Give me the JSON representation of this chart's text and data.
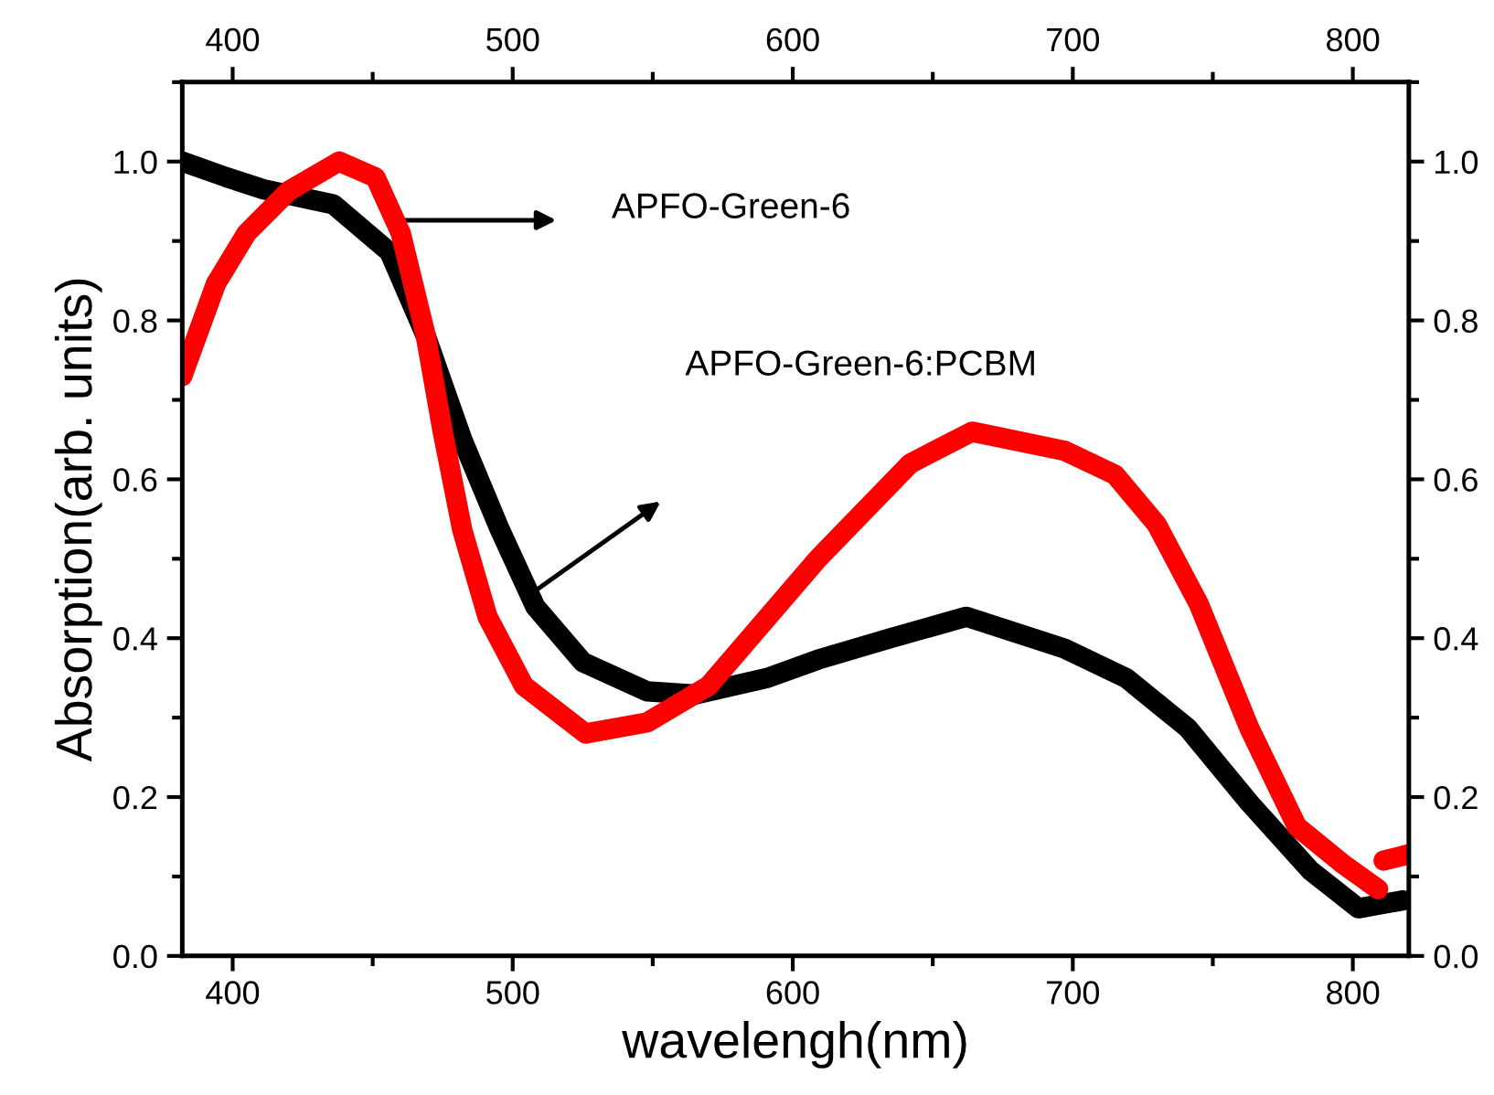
{
  "chart_data": {
    "type": "line",
    "xlabel": "wavelengh(nm)",
    "ylabel": "Absorption(arb. units)",
    "xlim": [
      382,
      820
    ],
    "xticks": [
      400,
      500,
      600,
      700,
      800
    ],
    "ylim": [
      0,
      1.1
    ],
    "yticks": [
      {
        "value": 0,
        "label": "0.0"
      },
      0.2,
      0.4,
      0.6,
      0.8,
      {
        "value": 1,
        "label": "1.0"
      }
    ],
    "x2lim": [
      382,
      820
    ],
    "x2ticks": [
      400,
      500,
      600,
      700,
      800
    ],
    "y2lim": [
      0,
      1.1
    ],
    "y2ticks": [
      {
        "value": 0,
        "label": "0.0"
      },
      0.2,
      0.4,
      0.6,
      0.8,
      {
        "value": 1,
        "label": "1.0"
      }
    ],
    "grid": false,
    "legend": false,
    "line_style": "solid",
    "series": [
      {
        "color": "#000000",
        "x": [
          382,
          398,
          411,
          436,
          456,
          469,
          482,
          495,
          508,
          525,
          548,
          565,
          591,
          609,
          635,
          662,
          697,
          719,
          741,
          763,
          785,
          802,
          818
        ],
        "values": [
          1.0,
          0.98,
          0.965,
          0.946,
          0.886,
          0.78,
          0.65,
          0.54,
          0.44,
          0.37,
          0.333,
          0.329,
          0.35,
          0.373,
          0.4,
          0.427,
          0.387,
          0.35,
          0.287,
          0.193,
          0.107,
          0.06,
          0.07
        ]
      },
      {
        "color": "#ff0000",
        "x": [
          382,
          394,
          405,
          420,
          438,
          451,
          460,
          469,
          475,
          482,
          491,
          504,
          526,
          548,
          570,
          609,
          642,
          664,
          697,
          715,
          730,
          745,
          763,
          780,
          796,
          809,
          810,
          811,
          820
        ],
        "values": [
          0.73,
          0.846,
          0.91,
          0.963,
          1.0,
          0.98,
          0.91,
          0.78,
          0.66,
          0.536,
          0.427,
          0.34,
          0.28,
          0.294,
          0.34,
          0.5,
          0.62,
          0.66,
          0.636,
          0.606,
          0.543,
          0.443,
          0.287,
          0.163,
          0.117,
          0.084,
          null,
          0.12,
          0.128
        ]
      }
    ],
    "annotations": [
      "APFO-Green-6",
      "APFO-Green-6:PCBM"
    ]
  }
}
